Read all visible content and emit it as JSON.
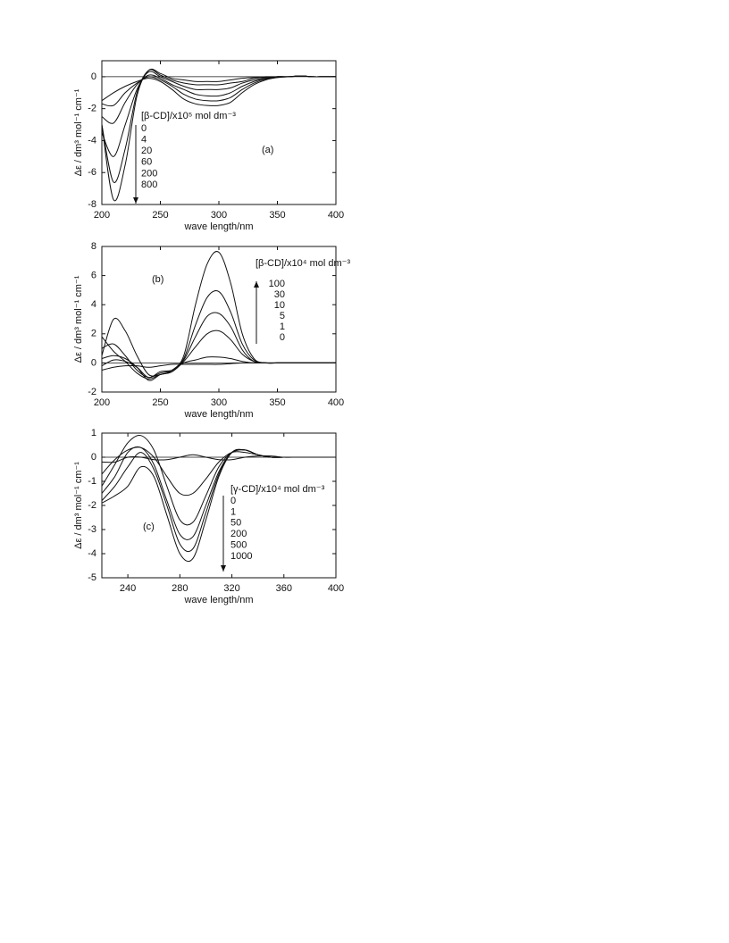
{
  "chart_data": [
    {
      "type": "line",
      "panel_label": "(a)",
      "xlabel": "wave length/nm",
      "ylabel": "Δε / dm³ mol⁻¹ cm⁻¹",
      "legend_title": "[β-CD]/x10⁵ mol dm⁻³",
      "zero_line": true,
      "xlim": [
        200,
        400
      ],
      "xticks": [
        200,
        250,
        300,
        350,
        400
      ],
      "ylim": [
        -8,
        1
      ],
      "yticks": [
        0,
        -2,
        -4,
        -6,
        -8
      ],
      "x": [
        200,
        210,
        220,
        230,
        240,
        250,
        260,
        270,
        280,
        290,
        300,
        310,
        320,
        330,
        340,
        350,
        360,
        370,
        380,
        390,
        400
      ],
      "series": [
        {
          "name": "0",
          "color": "#111111",
          "values": [
            -1.5,
            -1.0,
            -0.6,
            -0.3,
            -0.1,
            -0.3,
            -0.8,
            -1.4,
            -1.7,
            -1.8,
            -1.8,
            -1.6,
            -1.0,
            -0.5,
            -0.2,
            -0.05,
            0,
            0.05,
            0,
            0,
            0
          ]
        },
        {
          "name": "4",
          "color": "#111111",
          "values": [
            -1.7,
            -1.8,
            -1.0,
            -0.4,
            0,
            -0.2,
            -0.6,
            -1.1,
            -1.4,
            -1.5,
            -1.5,
            -1.3,
            -0.8,
            -0.4,
            -0.15,
            -0.05,
            0,
            0.05,
            0,
            0,
            0
          ]
        },
        {
          "name": "20",
          "color": "#111111",
          "values": [
            -2.5,
            -2.9,
            -1.6,
            -0.5,
            0.1,
            -0.1,
            -0.5,
            -0.8,
            -1.1,
            -1.2,
            -1.2,
            -1.0,
            -0.6,
            -0.3,
            -0.1,
            0,
            0,
            0.05,
            0,
            0,
            0
          ]
        },
        {
          "name": "60",
          "color": "#111111",
          "values": [
            -3.5,
            -5.0,
            -3.0,
            -0.8,
            0.3,
            0,
            -0.3,
            -0.6,
            -0.8,
            -0.8,
            -0.8,
            -0.7,
            -0.4,
            -0.2,
            -0.1,
            0,
            0,
            0.05,
            0,
            0,
            0
          ]
        },
        {
          "name": "200",
          "color": "#111111",
          "values": [
            -3.0,
            -6.6,
            -4.5,
            -1.0,
            0.4,
            0.1,
            -0.2,
            -0.4,
            -0.5,
            -0.5,
            -0.5,
            -0.4,
            -0.3,
            -0.1,
            -0.05,
            0,
            0,
            0.05,
            0,
            0,
            0
          ]
        },
        {
          "name": "800",
          "color": "#111111",
          "values": [
            -3.0,
            -7.7,
            -5.5,
            -1.2,
            0.4,
            0.2,
            -0.1,
            -0.2,
            -0.3,
            -0.3,
            -0.3,
            -0.2,
            -0.1,
            -0.05,
            0,
            0,
            0,
            0.05,
            0,
            0,
            0
          ]
        }
      ]
    },
    {
      "type": "line",
      "panel_label": "(b)",
      "xlabel": "wave length/nm",
      "ylabel": "Δε / dm³ mol⁻¹ cm⁻¹",
      "legend_title": "[β-CD]/x10⁴ mol dm⁻³",
      "zero_line": true,
      "xlim": [
        200,
        400
      ],
      "xticks": [
        200,
        250,
        300,
        350,
        400
      ],
      "ylim": [
        -2,
        8
      ],
      "yticks": [
        8,
        6,
        4,
        2,
        0,
        -2
      ],
      "x": [
        200,
        210,
        220,
        230,
        240,
        250,
        260,
        270,
        280,
        290,
        300,
        310,
        320,
        330,
        340,
        350,
        360,
        370,
        380,
        390,
        400
      ],
      "series": [
        {
          "name": "100",
          "color": "#111111",
          "values": [
            0.5,
            3.0,
            2.2,
            0.5,
            -0.8,
            -0.8,
            -0.5,
            0.5,
            4.0,
            6.8,
            7.6,
            5.5,
            2.0,
            0.3,
            0,
            0,
            0,
            0,
            0,
            0,
            0
          ]
        },
        {
          "name": "30",
          "color": "#111111",
          "values": [
            1.0,
            1.3,
            0.5,
            -0.5,
            -1.0,
            -0.7,
            -0.5,
            0.3,
            2.6,
            4.5,
            4.9,
            3.5,
            1.3,
            0.2,
            0,
            0,
            0,
            0,
            0,
            0,
            0
          ]
        },
        {
          "name": "10",
          "color": "#111111",
          "values": [
            1.8,
            0.8,
            0.1,
            -0.7,
            -1.1,
            -0.8,
            -0.6,
            0.2,
            1.8,
            3.2,
            3.4,
            2.5,
            0.9,
            0.1,
            0,
            0,
            0,
            0,
            0,
            0,
            0
          ]
        },
        {
          "name": "5",
          "color": "#111111",
          "values": [
            0.3,
            0.5,
            0.3,
            -0.3,
            -1.2,
            -0.8,
            -0.6,
            0.1,
            1.1,
            2.0,
            2.2,
            1.6,
            0.6,
            0.1,
            0,
            0,
            0,
            0,
            0,
            0,
            0
          ]
        },
        {
          "name": "1",
          "color": "#111111",
          "values": [
            -0.2,
            0.2,
            0.1,
            -0.3,
            -1.0,
            -0.6,
            -0.5,
            0,
            0.2,
            0.4,
            0.4,
            0.3,
            0.1,
            0,
            0,
            0,
            0,
            0,
            0,
            0,
            0
          ]
        },
        {
          "name": "0",
          "color": "#111111",
          "values": [
            -0.5,
            -0.3,
            -0.2,
            -0.2,
            -0.3,
            -0.2,
            -0.1,
            -0.1,
            -0.1,
            -0.1,
            -0.1,
            -0.05,
            0,
            0,
            0,
            0,
            0,
            0,
            0,
            0,
            0
          ]
        }
      ]
    },
    {
      "type": "line",
      "panel_label": "(c)",
      "xlabel": "wave length/nm",
      "ylabel": "Δε / dm³ mol⁻¹ cm⁻¹",
      "legend_title": "[γ-CD]/x10⁴ mol dm⁻³",
      "zero_line": true,
      "xlim": [
        220,
        400
      ],
      "xticks": [
        240,
        280,
        320,
        360,
        400
      ],
      "ylim": [
        -5,
        1
      ],
      "yticks": [
        1,
        0,
        -1,
        -2,
        -3,
        -4,
        -5
      ],
      "x": [
        220,
        230,
        240,
        250,
        260,
        270,
        280,
        290,
        300,
        310,
        320,
        330,
        340,
        350,
        360,
        370,
        380,
        390,
        400
      ],
      "series": [
        {
          "name": "0",
          "color": "#111111",
          "values": [
            -0.2,
            -0.2,
            0,
            0,
            -0.1,
            -0.1,
            0,
            0.1,
            0,
            -0.1,
            -0.1,
            0,
            0.05,
            0.05,
            0,
            0,
            0,
            0,
            0
          ]
        },
        {
          "name": "1",
          "color": "#111111",
          "values": [
            -0.7,
            -0.1,
            0.3,
            0.4,
            0,
            -0.8,
            -1.5,
            -1.5,
            -0.9,
            -0.2,
            0.2,
            0.2,
            0.1,
            0,
            0,
            0,
            0,
            0,
            0
          ]
        },
        {
          "name": "50",
          "color": "#111111",
          "values": [
            -1.2,
            -0.3,
            0.6,
            0.9,
            0.3,
            -1.2,
            -2.6,
            -2.7,
            -1.6,
            -0.4,
            0.2,
            0.3,
            0.1,
            0,
            0,
            0,
            0,
            0,
            0
          ]
        },
        {
          "name": "200",
          "color": "#111111",
          "values": [
            -1.5,
            -0.8,
            0.2,
            0.4,
            -0.3,
            -1.8,
            -3.2,
            -3.3,
            -2.0,
            -0.6,
            0.2,
            0.3,
            0.1,
            0,
            0,
            0,
            0,
            0,
            0
          ]
        },
        {
          "name": "500",
          "color": "#111111",
          "values": [
            -1.8,
            -1.2,
            -0.4,
            0.2,
            -0.5,
            -2.0,
            -3.6,
            -3.8,
            -2.3,
            -0.7,
            0.2,
            0.3,
            0.1,
            0,
            0,
            0,
            0,
            0,
            0
          ]
        },
        {
          "name": "1000",
          "color": "#111111",
          "values": [
            -1.9,
            -1.6,
            -1.2,
            -0.4,
            -0.8,
            -2.4,
            -4.0,
            -4.2,
            -2.6,
            -0.8,
            0.2,
            0.3,
            0.1,
            0,
            0,
            0,
            0,
            0,
            0
          ]
        }
      ]
    }
  ]
}
